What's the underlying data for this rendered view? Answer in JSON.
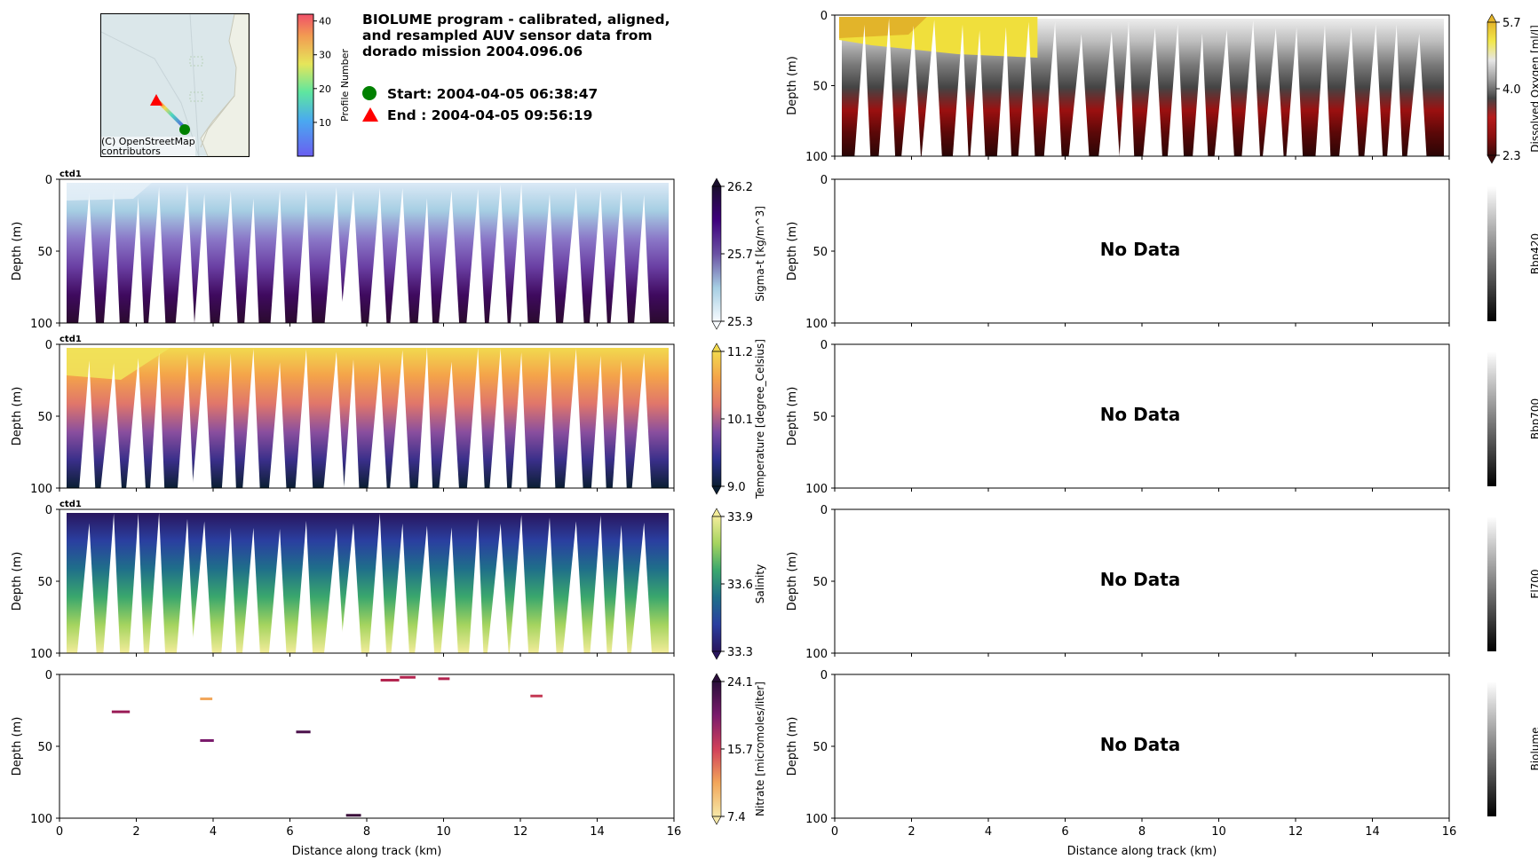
{
  "header": {
    "title_lines": [
      "BIOLUME program - calibrated, aligned,",
      "and resampled AUV sensor data from",
      "dorado mission 2004.096.06"
    ],
    "start_label": "Start: 2004-04-05 06:38:47",
    "end_label": "End  : 2004-04-05 09:56:19",
    "start_color": "#008000",
    "end_color": "#ff0000"
  },
  "map": {
    "credit_lines": [
      "(C) OpenStreetMap",
      "contributors"
    ],
    "colorbar_label": "Profile Number",
    "colorbar_ticks": [
      "10",
      "20",
      "30",
      "40"
    ],
    "colorbar_tick_values": [
      10,
      20,
      30,
      40
    ],
    "colorbar_range": [
      0,
      42
    ]
  },
  "no_data_text": "No Data",
  "chart_data": [
    {
      "type": "heatmap",
      "id": "sigma_t",
      "panel_tag": "ctd1",
      "variable": "Sigma-t [kg/m^3]",
      "colormap": [
        "#f7fbff",
        "#a6cee3",
        "#6a51a3",
        "#3f007d",
        "#1a0f2e"
      ],
      "colorbar_ticks": [
        "26.2",
        "25.7",
        "25.3"
      ],
      "vmin": 25.3,
      "vmax": 26.2,
      "xlabel": "",
      "ylabel": "Depth (m)",
      "y_ticks": [
        "0",
        "50",
        "100"
      ],
      "ylim": [
        100,
        0
      ],
      "x_ticks": [
        "0",
        "2",
        "4",
        "6",
        "8",
        "10",
        "12",
        "14",
        "16"
      ],
      "xlim": [
        0,
        16
      ],
      "show_xticklabels": false
    },
    {
      "type": "heatmap",
      "id": "temperature",
      "panel_tag": "ctd1",
      "variable": "Temperature [degree_Celsius]",
      "colormap": [
        "#0b1f33",
        "#2b2f8f",
        "#7a4aa3",
        "#e0766b",
        "#f4a34a",
        "#f2d94e"
      ],
      "colorbar_ticks": [
        "11.2",
        "10.1",
        "9.0"
      ],
      "vmin": 9.0,
      "vmax": 11.2,
      "xlabel": "",
      "ylabel": "Depth (m)",
      "y_ticks": [
        "0",
        "50",
        "100"
      ],
      "ylim": [
        100,
        0
      ],
      "x_ticks": [
        "0",
        "2",
        "4",
        "6",
        "8",
        "10",
        "12",
        "14",
        "16"
      ],
      "xlim": [
        0,
        16
      ],
      "show_xticklabels": false
    },
    {
      "type": "heatmap",
      "id": "salinity",
      "panel_tag": "ctd1",
      "variable": "Salinity",
      "colormap": [
        "#29165e",
        "#2a3fa0",
        "#1f6f8a",
        "#3aa76d",
        "#a5d45f",
        "#f3ec9a"
      ],
      "colorbar_ticks": [
        "33.9",
        "33.6",
        "33.3"
      ],
      "vmin": 33.3,
      "vmax": 33.9,
      "xlabel": "",
      "ylabel": "Depth (m)",
      "y_ticks": [
        "0",
        "50",
        "100"
      ],
      "ylim": [
        100,
        0
      ],
      "x_ticks": [
        "0",
        "2",
        "4",
        "6",
        "8",
        "10",
        "12",
        "14",
        "16"
      ],
      "xlim": [
        0,
        16
      ],
      "show_xticklabels": false
    },
    {
      "type": "heatmap",
      "id": "nitrate",
      "panel_tag": "",
      "variable": "Nitrate [micromoles/liter]",
      "colormap": [
        "#f6e8a8",
        "#f2a65a",
        "#d1405a",
        "#7a1b6c",
        "#2a0f3a"
      ],
      "colorbar_ticks": [
        "24.1",
        "15.7",
        "7.4"
      ],
      "vmin": 7.4,
      "vmax": 24.1,
      "xlabel": "Distance along track (km)",
      "ylabel": "Depth (m)",
      "y_ticks": [
        "0",
        "50",
        "100"
      ],
      "ylim": [
        100,
        0
      ],
      "x_ticks": [
        "0",
        "2",
        "4",
        "6",
        "8",
        "10",
        "12",
        "14",
        "16"
      ],
      "xlim": [
        0,
        16
      ],
      "show_xticklabels": true,
      "sparse_points": [
        {
          "x": 1.5,
          "depth": 26,
          "color": "#9a1b56"
        },
        {
          "x": 3.8,
          "depth": 17,
          "color": "#f2a65a"
        },
        {
          "x": 3.8,
          "depth": 46,
          "color": "#7a1b6c"
        },
        {
          "x": 6.3,
          "depth": 40,
          "color": "#4a0f4a"
        },
        {
          "x": 8.5,
          "depth": 4,
          "color": "#b3244f"
        },
        {
          "x": 9.0,
          "depth": 2,
          "color": "#b3244f"
        },
        {
          "x": 10.0,
          "depth": 3,
          "color": "#b3244f"
        },
        {
          "x": 12.4,
          "depth": 15,
          "color": "#c43a55"
        },
        {
          "x": 7.6,
          "depth": 98,
          "color": "#3a0f3a"
        }
      ]
    },
    {
      "type": "heatmap",
      "id": "dissolved_oxygen",
      "panel_tag": "",
      "variable": "Dissolved Oxygen [ml/l]",
      "colormap": [
        "#3a0a0a",
        "#8b1010",
        "#b71c1c",
        "#444444",
        "#9e9e9e",
        "#e6e6e6",
        "#f2e84a",
        "#e4b52a"
      ],
      "colorbar_ticks": [
        "5.7",
        "4.0",
        "2.3"
      ],
      "vmin": 2.3,
      "vmax": 5.7,
      "xlabel": "",
      "ylabel": "Depth (m)",
      "y_ticks": [
        "0",
        "50",
        "100"
      ],
      "ylim": [
        100,
        0
      ],
      "x_ticks": [
        "0",
        "2",
        "4",
        "6",
        "8",
        "10",
        "12",
        "14",
        "16"
      ],
      "xlim": [
        0,
        16
      ],
      "show_xticklabels": false
    },
    {
      "type": "heatmap",
      "id": "bbp420",
      "panel_tag": "",
      "variable": "Bbp420",
      "colormap": [
        "#000000",
        "#ffffff"
      ],
      "colorbar_ticks": [],
      "no_data": true,
      "xlabel": "",
      "ylabel": "Depth (m)",
      "y_ticks": [
        "0",
        "50",
        "100"
      ],
      "ylim": [
        100,
        0
      ],
      "x_ticks": [
        "0",
        "2",
        "4",
        "6",
        "8",
        "10",
        "12",
        "14",
        "16"
      ],
      "xlim": [
        0,
        16
      ],
      "show_xticklabels": false
    },
    {
      "type": "heatmap",
      "id": "bbp700",
      "panel_tag": "",
      "variable": "Bbp700",
      "colormap": [
        "#000000",
        "#ffffff"
      ],
      "colorbar_ticks": [],
      "no_data": true,
      "xlabel": "",
      "ylabel": "Depth (m)",
      "y_ticks": [
        "0",
        "50",
        "100"
      ],
      "ylim": [
        100,
        0
      ],
      "x_ticks": [
        "0",
        "2",
        "4",
        "6",
        "8",
        "10",
        "12",
        "14",
        "16"
      ],
      "xlim": [
        0,
        16
      ],
      "show_xticklabels": false
    },
    {
      "type": "heatmap",
      "id": "fl700",
      "panel_tag": "",
      "variable": "Fl700",
      "colormap": [
        "#000000",
        "#ffffff"
      ],
      "colorbar_ticks": [],
      "no_data": true,
      "xlabel": "",
      "ylabel": "Depth (m)",
      "y_ticks": [
        "0",
        "50",
        "100"
      ],
      "ylim": [
        100,
        0
      ],
      "x_ticks": [
        "0",
        "2",
        "4",
        "6",
        "8",
        "10",
        "12",
        "14",
        "16"
      ],
      "xlim": [
        0,
        16
      ],
      "show_xticklabels": false
    },
    {
      "type": "heatmap",
      "id": "biolume",
      "panel_tag": "",
      "variable": "Biolume",
      "colormap": [
        "#000000",
        "#ffffff"
      ],
      "colorbar_ticks": [],
      "no_data": true,
      "xlabel": "Distance along track (km)",
      "ylabel": "Depth (m)",
      "y_ticks": [
        "0",
        "50",
        "100"
      ],
      "ylim": [
        100,
        0
      ],
      "x_ticks": [
        "0",
        "2",
        "4",
        "6",
        "8",
        "10",
        "12",
        "14",
        "16"
      ],
      "xlim": [
        0,
        16
      ],
      "show_xticklabels": true
    }
  ]
}
